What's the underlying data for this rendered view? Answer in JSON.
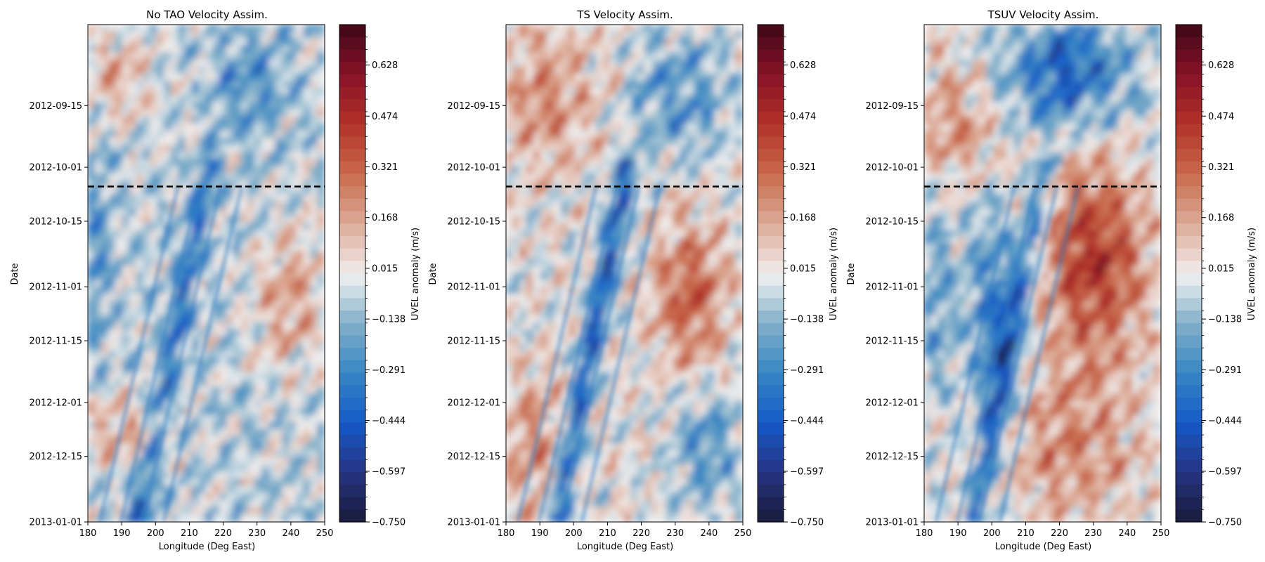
{
  "chart_data": [
    {
      "type": "heatmap",
      "title": "No TAO Velocity Assim.",
      "xlabel": "Longitude (Deg East)",
      "ylabel": "Date",
      "colorbar_label": "UVEL anomaly (m/s)",
      "xlim": [
        180,
        250
      ],
      "x_ticks": [
        "180",
        "190",
        "200",
        "210",
        "220",
        "230",
        "240",
        "250"
      ],
      "ylim": [
        "2012-08-25",
        "2013-01-01"
      ],
      "y_ticks": [
        "2012-09-15",
        "2012-10-01",
        "2012-10-15",
        "2012-11-01",
        "2012-11-15",
        "2012-12-01",
        "2012-12-15",
        "2013-01-01"
      ],
      "clim": [
        -0.75,
        0.75
      ],
      "colorbar_ticks": [
        "0.628",
        "0.474",
        "0.321",
        "0.168",
        "0.015",
        "−0.138",
        "−0.291",
        "−0.444",
        "−0.597",
        "−0.750"
      ],
      "reference_line_date": "2012-10-06",
      "colormap": "balance (blue-white-red)",
      "pattern": "mixed weak anomalies; westward-tilted negative streaks after the line; positive core near 235-245E in mid-November"
    },
    {
      "type": "heatmap",
      "title": "TS Velocity Assim.",
      "xlabel": "Longitude (Deg East)",
      "ylabel": "Date",
      "colorbar_label": "UVEL anomaly (m/s)",
      "xlim": [
        180,
        250
      ],
      "x_ticks": [
        "180",
        "190",
        "200",
        "210",
        "220",
        "230",
        "240",
        "250"
      ],
      "ylim": [
        "2012-08-25",
        "2013-01-01"
      ],
      "y_ticks": [
        "2012-09-15",
        "2012-10-01",
        "2012-10-15",
        "2012-11-01",
        "2012-11-15",
        "2012-12-01",
        "2012-12-15",
        "2013-01-01"
      ],
      "clim": [
        -0.75,
        0.75
      ],
      "colorbar_ticks": [
        "0.628",
        "0.474",
        "0.321",
        "0.168",
        "0.015",
        "−0.138",
        "−0.291",
        "−0.444",
        "−0.597",
        "−0.750"
      ],
      "reference_line_date": "2012-10-06",
      "colormap": "balance (blue-white-red)",
      "pattern": "stronger diagonal negative band from 220E (Oct) to 200E (Dec); positive anomalies in the west and east-central region"
    },
    {
      "type": "heatmap",
      "title": "TSUV Velocity Assim.",
      "xlabel": "Longitude (Deg East)",
      "ylabel": "Date",
      "colorbar_label": "UVEL anomaly (m/s)",
      "xlim": [
        180,
        250
      ],
      "x_ticks": [
        "180",
        "190",
        "200",
        "210",
        "220",
        "230",
        "240",
        "250"
      ],
      "ylim": [
        "2012-08-25",
        "2013-01-01"
      ],
      "y_ticks": [
        "2012-09-15",
        "2012-10-01",
        "2012-10-15",
        "2012-11-01",
        "2012-11-15",
        "2012-12-01",
        "2012-12-15",
        "2013-01-01"
      ],
      "clim": [
        -0.75,
        0.75
      ],
      "colorbar_ticks": [
        "0.628",
        "0.474",
        "0.321",
        "0.168",
        "0.015",
        "−0.138",
        "−0.291",
        "−0.444",
        "−0.597",
        "−0.750"
      ],
      "reference_line_date": "2012-10-06",
      "colormap": "balance (blue-white-red)",
      "pattern": "strong negative anomalies NE before the line; strong positive anomalies (up to ~0.5 m/s) east of 220E after the line; negative band 195-215E"
    }
  ]
}
